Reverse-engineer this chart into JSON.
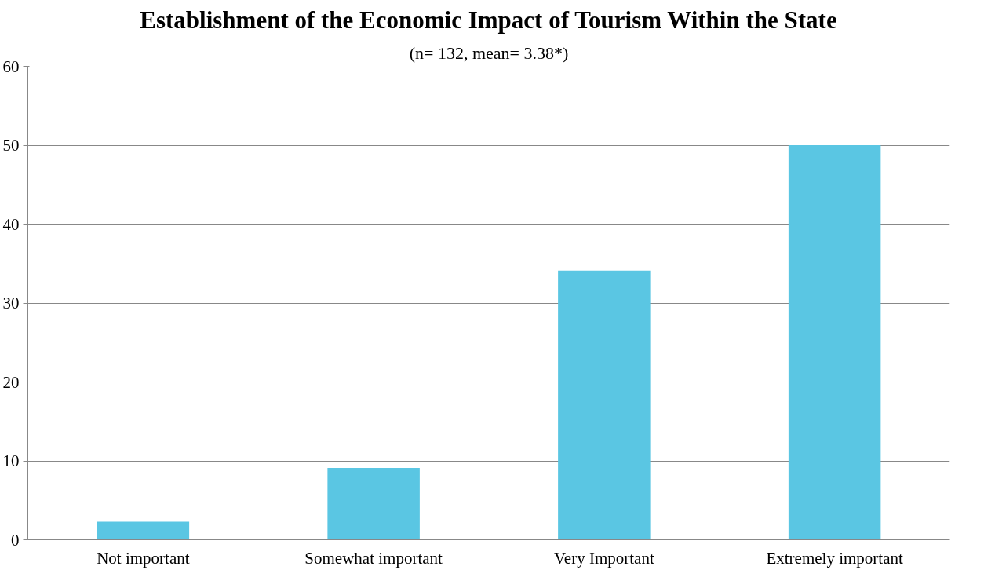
{
  "chart_data": {
    "type": "bar",
    "title": "Establishment of the Economic Impact of Tourism Within the State",
    "subtitle": "(n= 132, mean= 3.38*)",
    "categories": [
      "Not important",
      "Somewhat important",
      "Very Important",
      "Extremely important"
    ],
    "values": [
      2.3,
      9.1,
      34.1,
      50.0
    ],
    "color": "#5ac6e3",
    "ylim": [
      0,
      60
    ],
    "yticks": [
      0,
      10,
      20,
      30,
      40,
      50,
      60
    ],
    "grid": "y"
  }
}
